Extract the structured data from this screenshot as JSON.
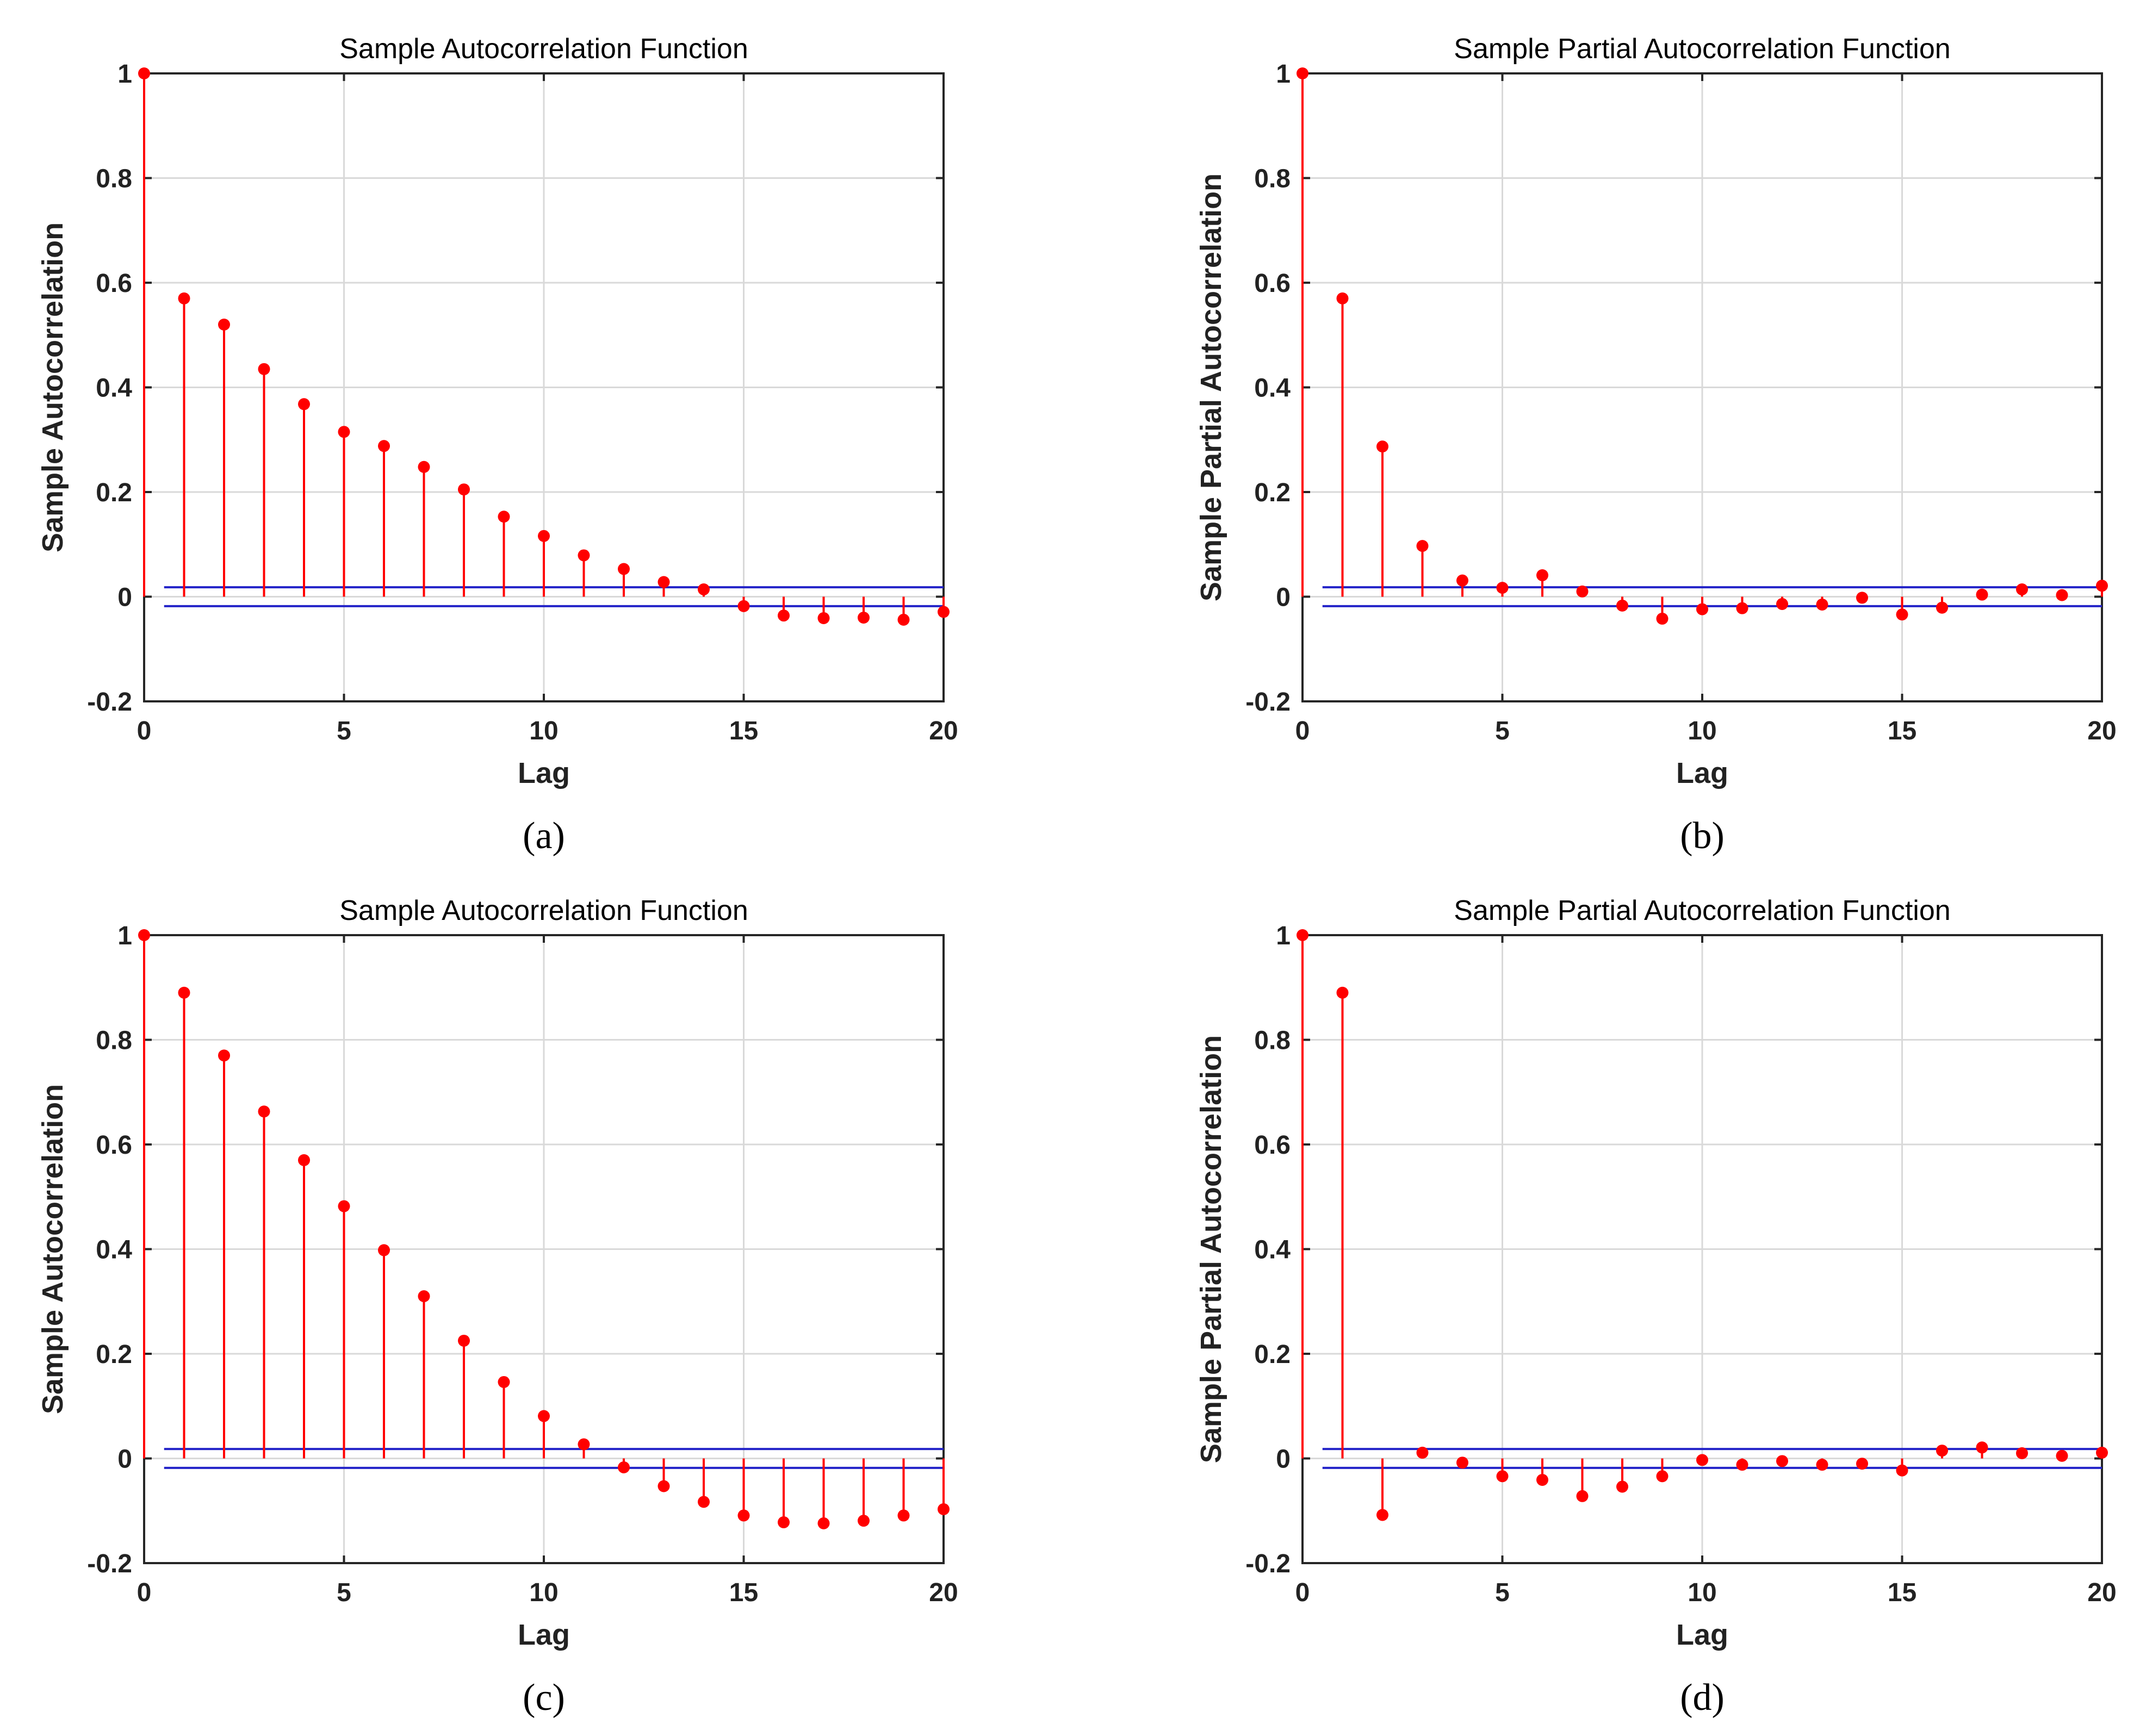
{
  "colors": {
    "stem": "#ff0000",
    "bound": "#2323c8",
    "axis": "#262626",
    "grid": "#d9d9d9"
  },
  "chart_data": [
    {
      "type": "stem",
      "caption": "(a)",
      "title": "Sample Autocorrelation Function",
      "xlabel": "Lag",
      "ylabel": "Sample Autocorrelation",
      "xlim": [
        0,
        20
      ],
      "ylim": [
        -0.2,
        1
      ],
      "xticks": [
        0,
        5,
        10,
        15,
        20
      ],
      "xtick_labels": [
        "0",
        "5",
        "10",
        "15",
        "20"
      ],
      "yticks": [
        -0.2,
        0,
        0.2,
        0.4,
        0.6,
        0.8,
        1
      ],
      "ytick_labels": [
        "-0.2",
        "0",
        "0.2",
        "0.4",
        "0.6",
        "0.8",
        "1"
      ],
      "grid": true,
      "lags": [
        0,
        1,
        2,
        3,
        4,
        5,
        6,
        7,
        8,
        9,
        10,
        11,
        12,
        13,
        14,
        15,
        16,
        17,
        18,
        19,
        20
      ],
      "values": [
        1.0,
        0.57,
        0.52,
        0.435,
        0.368,
        0.315,
        0.288,
        0.248,
        0.205,
        0.153,
        0.116,
        0.079,
        0.053,
        0.028,
        0.014,
        -0.018,
        -0.036,
        -0.041,
        -0.04,
        -0.044,
        -0.029
      ],
      "confidence_bounds": [
        0.018,
        -0.018
      ]
    },
    {
      "type": "stem",
      "caption": "(b)",
      "title": "Sample Partial Autocorrelation Function",
      "xlabel": "Lag",
      "ylabel": "Sample Partial Autocorrelation",
      "xlim": [
        0,
        20
      ],
      "ylim": [
        -0.2,
        1
      ],
      "xticks": [
        0,
        5,
        10,
        15,
        20
      ],
      "xtick_labels": [
        "0",
        "5",
        "10",
        "15",
        "20"
      ],
      "yticks": [
        -0.2,
        0,
        0.2,
        0.4,
        0.6,
        0.8,
        1
      ],
      "ytick_labels": [
        "-0.2",
        "0",
        "0.2",
        "0.4",
        "0.6",
        "0.8",
        "1"
      ],
      "grid": true,
      "lags": [
        0,
        1,
        2,
        3,
        4,
        5,
        6,
        7,
        8,
        9,
        10,
        11,
        12,
        13,
        14,
        15,
        16,
        17,
        18,
        19,
        20
      ],
      "values": [
        1.0,
        0.57,
        0.287,
        0.097,
        0.031,
        0.017,
        0.041,
        0.01,
        -0.017,
        -0.042,
        -0.024,
        -0.022,
        -0.014,
        -0.015,
        -0.002,
        -0.034,
        -0.021,
        0.004,
        0.014,
        0.003,
        0.021
      ],
      "confidence_bounds": [
        0.018,
        -0.018
      ]
    },
    {
      "type": "stem",
      "caption": "(c)",
      "title": "Sample Autocorrelation Function",
      "xlabel": "Lag",
      "ylabel": "Sample Autocorrelation",
      "xlim": [
        0,
        20
      ],
      "ylim": [
        -0.2,
        1
      ],
      "xticks": [
        0,
        5,
        10,
        15,
        20
      ],
      "xtick_labels": [
        "0",
        "5",
        "10",
        "15",
        "20"
      ],
      "yticks": [
        -0.2,
        0,
        0.2,
        0.4,
        0.6,
        0.8,
        1
      ],
      "ytick_labels": [
        "-0.2",
        "0",
        "0.2",
        "0.4",
        "0.6",
        "0.8",
        "1"
      ],
      "grid": true,
      "lags": [
        0,
        1,
        2,
        3,
        4,
        5,
        6,
        7,
        8,
        9,
        10,
        11,
        12,
        13,
        14,
        15,
        16,
        17,
        18,
        19,
        20
      ],
      "values": [
        1.0,
        0.89,
        0.77,
        0.663,
        0.57,
        0.482,
        0.398,
        0.31,
        0.225,
        0.146,
        0.081,
        0.027,
        -0.017,
        -0.053,
        -0.083,
        -0.109,
        -0.122,
        -0.124,
        -0.119,
        -0.109,
        -0.097
      ],
      "confidence_bounds": [
        0.018,
        -0.018
      ]
    },
    {
      "type": "stem",
      "caption": "(d)",
      "title": "Sample Partial Autocorrelation Function",
      "xlabel": "Lag",
      "ylabel": "Sample Partial Autocorrelation",
      "xlim": [
        0,
        20
      ],
      "ylim": [
        -0.2,
        1
      ],
      "xticks": [
        0,
        5,
        10,
        15,
        20
      ],
      "xtick_labels": [
        "0",
        "5",
        "10",
        "15",
        "20"
      ],
      "yticks": [
        -0.2,
        0,
        0.2,
        0.4,
        0.6,
        0.8,
        1
      ],
      "ytick_labels": [
        "-0.2",
        "0",
        "0.2",
        "0.4",
        "0.6",
        "0.8",
        "1"
      ],
      "grid": true,
      "lags": [
        0,
        1,
        2,
        3,
        4,
        5,
        6,
        7,
        8,
        9,
        10,
        11,
        12,
        13,
        14,
        15,
        16,
        17,
        18,
        19,
        20
      ],
      "values": [
        1.0,
        0.89,
        -0.108,
        0.011,
        -0.008,
        -0.034,
        -0.041,
        -0.072,
        -0.054,
        -0.034,
        -0.003,
        -0.012,
        -0.005,
        -0.012,
        -0.01,
        -0.023,
        0.015,
        0.021,
        0.01,
        0.005,
        0.011
      ],
      "confidence_bounds": [
        0.018,
        -0.018
      ]
    }
  ]
}
